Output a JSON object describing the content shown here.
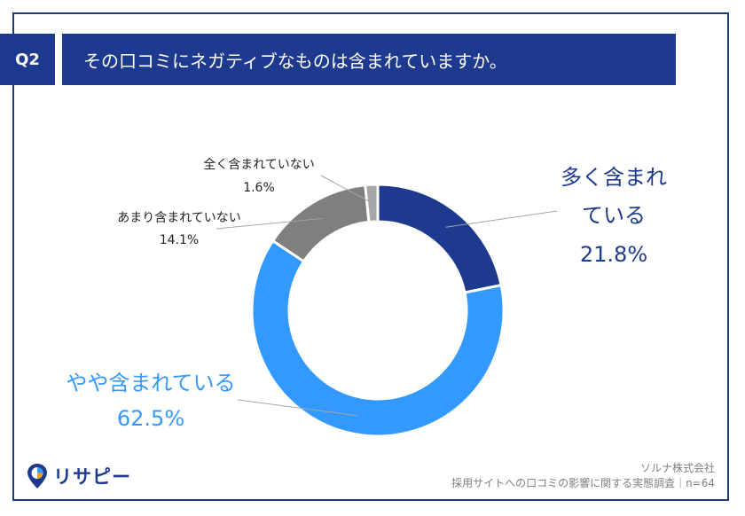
{
  "question": {
    "badge": "Q2",
    "title": "その口コミにネガティブなものは含まれていますか。"
  },
  "chart_data": {
    "type": "pie",
    "donut": true,
    "categories": [
      "多く含まれている",
      "やや含まれている",
      "あまり含まれていない",
      "全く含まれていない"
    ],
    "values": [
      21.8,
      62.5,
      14.1,
      1.6
    ],
    "value_labels": [
      "21.8%",
      "62.5%",
      "14.1%",
      "1.6%"
    ],
    "colors": [
      "#1d3a8f",
      "#3399ff",
      "#7f7f7f",
      "#a6a6a6"
    ],
    "label_colors": [
      "#1d3a8f",
      "#3399ff",
      "#222222",
      "#222222"
    ],
    "start_angle": "12 o'clock",
    "direction": "clockwise"
  },
  "footer": {
    "company": "ソルナ株式会社",
    "source": "採用サイトへの口コミの影響に関する実態調査｜n=64"
  },
  "logo": {
    "text": "リサピー",
    "icon": "pin-icon",
    "icon_colors": [
      "#1d3a8f",
      "#3399ff",
      "#f0a020"
    ]
  }
}
